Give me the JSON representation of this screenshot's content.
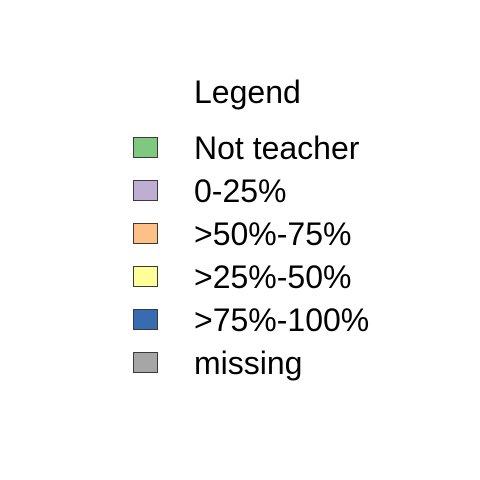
{
  "chart_data": {
    "type": "legend",
    "title": "Legend",
    "entries": [
      {
        "label": "Not teacher",
        "color": "#7fc97f"
      },
      {
        "label": "0-25%",
        "color": "#beaed4"
      },
      {
        "label": ">50%-75%",
        "color": "#fdc086"
      },
      {
        "label": ">25%-50%",
        "color": "#ffff99"
      },
      {
        "label": ">75%-100%",
        "color": "#386cb0"
      },
      {
        "label": "missing",
        "color": "#a6a6a6"
      }
    ]
  }
}
